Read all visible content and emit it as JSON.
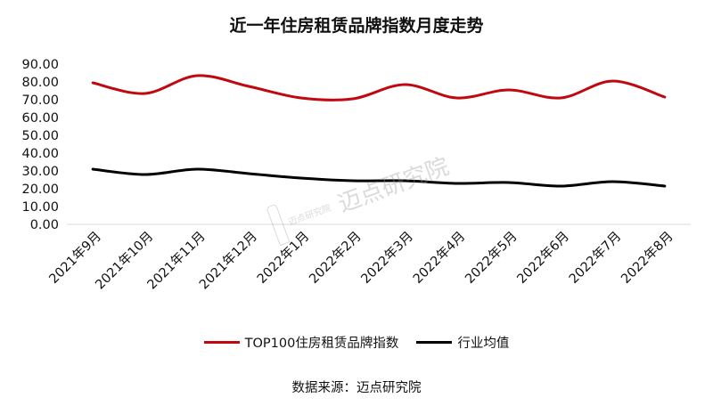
{
  "page": {
    "title": "近一年住房租赁品牌指数月度走势",
    "source": "数据来源：迈点研究院"
  },
  "watermark": {
    "small_text": "迈点研究院",
    "large_text": "迈点研究院"
  },
  "colors": {
    "series_1": "#c0080f",
    "series_2": "#000000",
    "axis": "#d9d9d9"
  },
  "chart_data": {
    "type": "line",
    "title": "近一年住房租赁品牌指数月度走势",
    "xlabel": "",
    "ylabel": "",
    "ylim": [
      0,
      90
    ],
    "yticks": [
      "0.00",
      "10.00",
      "20.00",
      "30.00",
      "40.00",
      "50.00",
      "60.00",
      "70.00",
      "80.00",
      "90.00"
    ],
    "categories": [
      "2021年9月",
      "2021年10月",
      "2021年11月",
      "2021年12月",
      "2022年1月",
      "2022年2月",
      "2022年3月",
      "2022年4月",
      "2022年5月",
      "2022年6月",
      "2022年7月",
      "2022年8月"
    ],
    "series": [
      {
        "name": "TOP100住房租赁品牌指数",
        "color": "#c0080f",
        "values": [
          79.5,
          73.5,
          83.5,
          77.5,
          71.0,
          70.5,
          78.5,
          71.0,
          75.5,
          71.0,
          80.5,
          71.5
        ]
      },
      {
        "name": "行业均值",
        "color": "#000000",
        "values": [
          31.0,
          28.0,
          31.0,
          28.5,
          26.0,
          24.5,
          24.5,
          23.0,
          23.5,
          21.5,
          24.0,
          21.5
        ]
      }
    ],
    "grid": false,
    "legend_position": "bottom",
    "smooth": true
  }
}
